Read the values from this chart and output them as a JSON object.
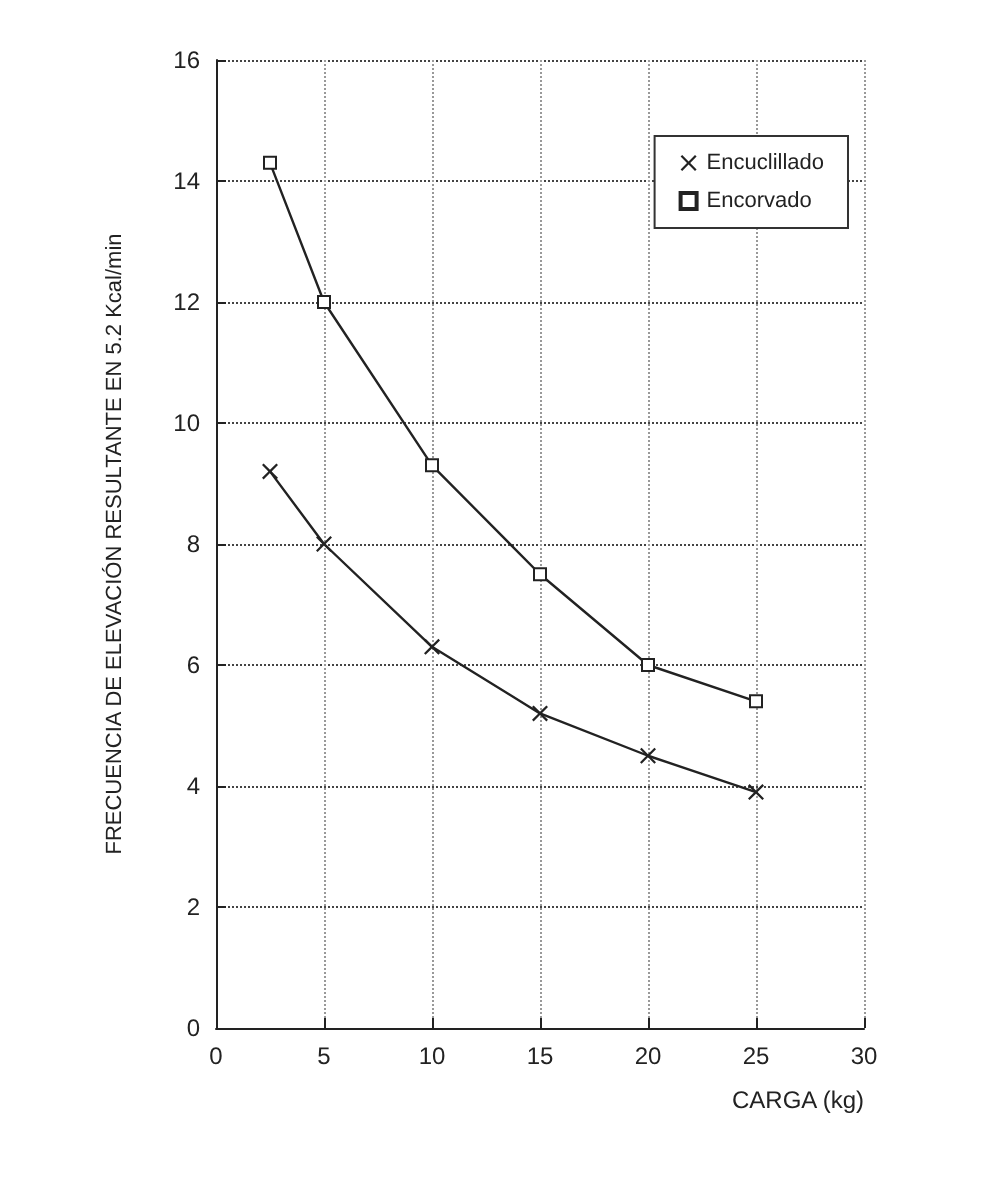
{
  "chart_data": {
    "type": "line",
    "xlabel": "CARGA (kg)",
    "ylabel": "FRECUENCIA DE ELEVACIÓN RESULTANTE EN 5.2 Kcal/min",
    "x": [
      2.5,
      5,
      10,
      15,
      20,
      25
    ],
    "series": [
      {
        "name": "Encuclillado",
        "color": "#222222",
        "marker": "cross",
        "values": [
          9.2,
          8.0,
          6.3,
          5.2,
          4.5,
          3.9
        ]
      },
      {
        "name": "Encorvado",
        "color": "#222222",
        "marker": "square",
        "values": [
          14.3,
          12.0,
          9.3,
          7.5,
          6.0,
          5.4
        ]
      }
    ],
    "xlim": [
      0,
      30
    ],
    "xticks": [
      0,
      5,
      10,
      15,
      20,
      25,
      30
    ],
    "ylim": [
      0,
      16
    ],
    "yticks": [
      0,
      2,
      4,
      6,
      8,
      10,
      12,
      14,
      16
    ],
    "grid": true,
    "legend": "top right",
    "line_style": "solid"
  }
}
